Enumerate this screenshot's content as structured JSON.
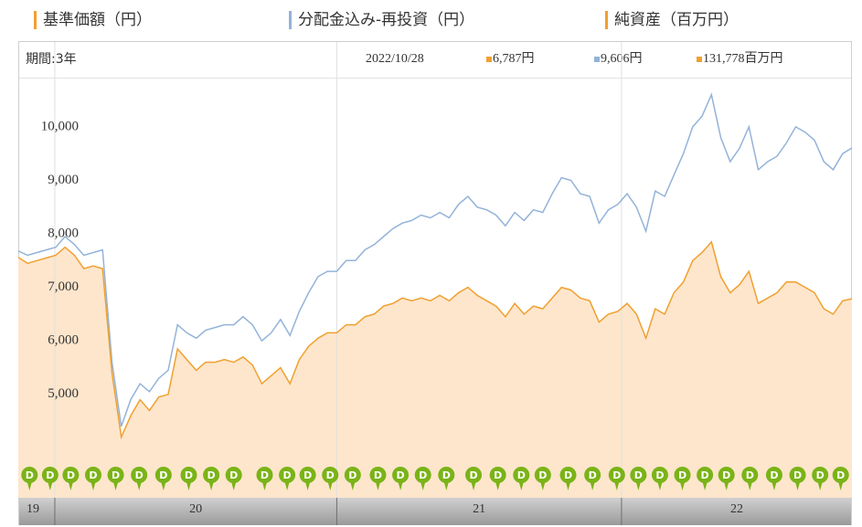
{
  "chart_data": {
    "type": "line",
    "series": [
      {
        "name": "基準価額（円）",
        "color": "#f0a030",
        "fill": "#fde6cc",
        "values": [
          7560,
          7450,
          7500,
          7550,
          7600,
          7750,
          7600,
          7350,
          7400,
          7350,
          5400,
          4200,
          4600,
          4900,
          4700,
          4950,
          5000,
          5850,
          5650,
          5450,
          5600,
          5600,
          5650,
          5600,
          5700,
          5550,
          5200,
          5350,
          5500,
          5200,
          5650,
          5900,
          6050,
          6150,
          6150,
          6300,
          6300,
          6450,
          6500,
          6650,
          6700,
          6800,
          6750,
          6800,
          6750,
          6850,
          6750,
          6900,
          7000,
          6850,
          6750,
          6650,
          6450,
          6700,
          6500,
          6650,
          6600,
          6800,
          7000,
          6950,
          6800,
          6750,
          6350,
          6500,
          6550,
          6700,
          6500,
          6050,
          6600,
          6500,
          6900,
          7100,
          7500,
          7650,
          7850,
          7200,
          6900,
          7050,
          7300,
          6700,
          6800,
          6900,
          7100,
          7100,
          7000,
          6900,
          6600,
          6500,
          6750,
          6787
        ]
      },
      {
        "name": "分配金込み-再投資（円）",
        "color": "#93b3d9",
        "values": [
          7680,
          7600,
          7650,
          7700,
          7750,
          7950,
          7800,
          7600,
          7650,
          7700,
          5600,
          4400,
          4900,
          5200,
          5050,
          5300,
          5450,
          6300,
          6150,
          6050,
          6200,
          6250,
          6300,
          6300,
          6450,
          6300,
          6000,
          6150,
          6400,
          6100,
          6550,
          6900,
          7200,
          7300,
          7300,
          7500,
          7500,
          7700,
          7800,
          7950,
          8100,
          8200,
          8250,
          8350,
          8300,
          8400,
          8300,
          8550,
          8700,
          8500,
          8450,
          8350,
          8150,
          8400,
          8250,
          8450,
          8400,
          8750,
          9050,
          9000,
          8750,
          8700,
          8200,
          8450,
          8550,
          8750,
          8500,
          8050,
          8800,
          8700,
          9100,
          9500,
          10000,
          10200,
          10600,
          9800,
          9350,
          9600,
          10000,
          9200,
          9350,
          9450,
          9700,
          10000,
          9900,
          9750,
          9350,
          9200,
          9500,
          9606
        ]
      }
    ],
    "extra_legend": {
      "name": "純資産（百万円）",
      "color": "#f0a030"
    },
    "info": {
      "period": "期間:3年",
      "date": "2022/10/28",
      "latest_labels": [
        "6,787円",
        "9,606円",
        "131,778百万円"
      ]
    },
    "info_colors": [
      "#f0a030",
      "#93b3d9",
      "#f0a030"
    ],
    "xlim": [
      0,
      89
    ],
    "xticks": [
      {
        "value": 0,
        "label": "19"
      },
      {
        "value": 3.9,
        "label": "20"
      },
      {
        "value": 34,
        "label": "21"
      },
      {
        "value": 64.4,
        "label": "22"
      }
    ],
    "ylim": [
      3750,
      10920
    ],
    "yticks": [
      {
        "value": 5000,
        "label": "5,000"
      },
      {
        "value": 6000,
        "label": "6,000"
      },
      {
        "value": 7000,
        "label": "7,000"
      },
      {
        "value": 8000,
        "label": "8,000"
      },
      {
        "value": 9000,
        "label": "9,000"
      },
      {
        "value": 10000,
        "label": "10,000"
      }
    ],
    "dividend_label": "D",
    "dividend_color": "#7ab317",
    "dividend_x": [
      1.2,
      3.4,
      5.6,
      8.0,
      10.4,
      12.9,
      15.5,
      18.2,
      20.6,
      23.0,
      26.3,
      28.7,
      30.9,
      33.3,
      35.7,
      38.4,
      40.8,
      43.2,
      45.7,
      48.6,
      51.2,
      53.7,
      56.0,
      58.7,
      61.3,
      63.9,
      66.2,
      68.5,
      70.9,
      73.3,
      75.6,
      78.1,
      80.7,
      83.2,
      85.6,
      87.8
    ]
  }
}
